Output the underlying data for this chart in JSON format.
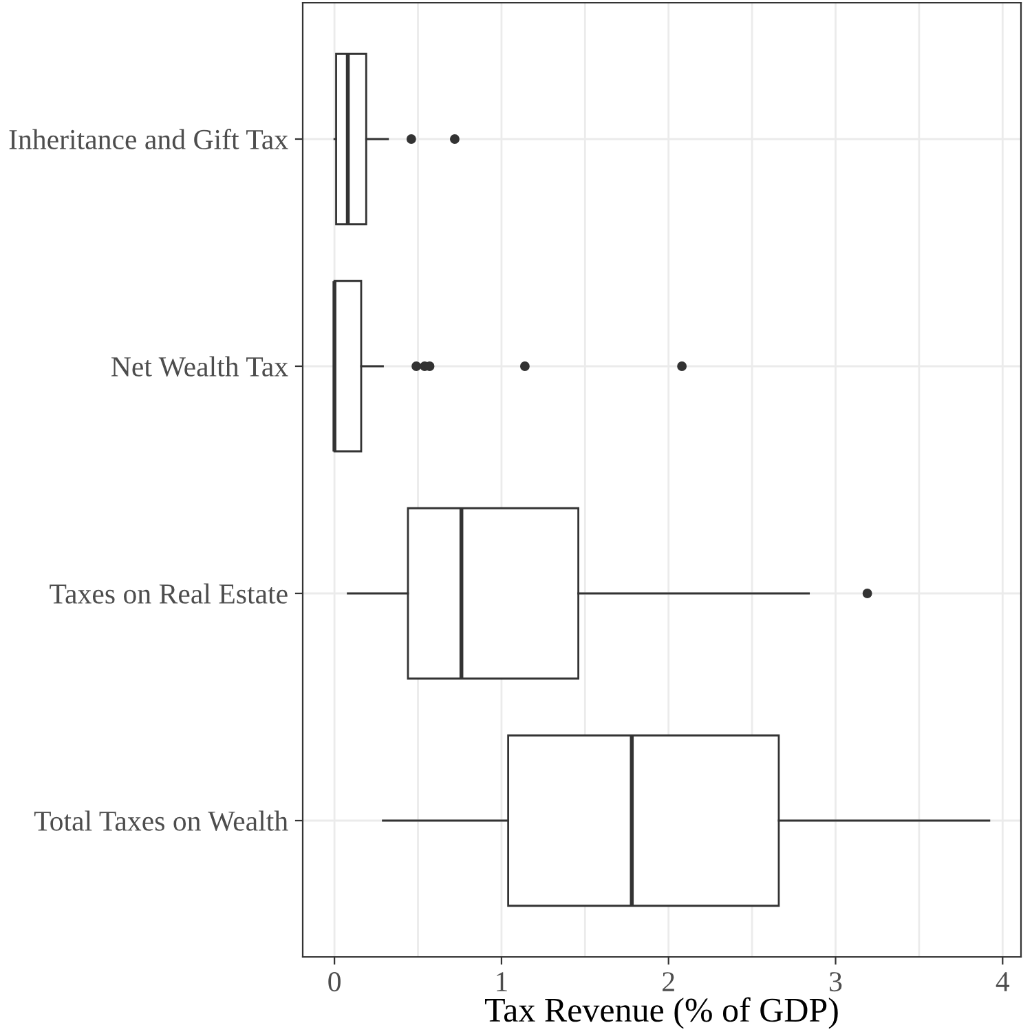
{
  "chart_data": {
    "type": "box",
    "orientation": "horizontal",
    "xlabel": "Tax Revenue (% of GDP)",
    "categories": [
      "Inheritance and Gift Tax",
      "Net Wealth Tax",
      "Taxes on Real Estate",
      "Total Taxes on Wealth"
    ],
    "boxes": [
      {
        "low": 0.0,
        "q1": 0.01,
        "median": 0.08,
        "q3": 0.19,
        "high": 0.32,
        "outliers": [
          0.46,
          0.72
        ]
      },
      {
        "low": 0.0,
        "q1": 0.0,
        "median": 0.0,
        "q3": 0.16,
        "high": 0.29,
        "outliers": [
          0.49,
          0.54,
          0.57,
          1.14,
          2.08
        ]
      },
      {
        "low": 0.08,
        "q1": 0.44,
        "median": 0.76,
        "q3": 1.46,
        "high": 2.84,
        "outliers": [
          3.19
        ]
      },
      {
        "low": 0.29,
        "q1": 1.04,
        "median": 1.78,
        "q3": 2.66,
        "high": 3.92
      }
    ],
    "color": "#333333",
    "xlim": [
      -0.19,
      4.11
    ],
    "xticks": [
      0,
      {
        "value": 0.5,
        "label": null
      },
      1,
      {
        "value": 1.5,
        "label": null
      },
      2,
      {
        "value": 2.5,
        "label": null
      },
      3,
      {
        "value": 3.5,
        "label": null
      },
      4
    ],
    "grid": true
  }
}
